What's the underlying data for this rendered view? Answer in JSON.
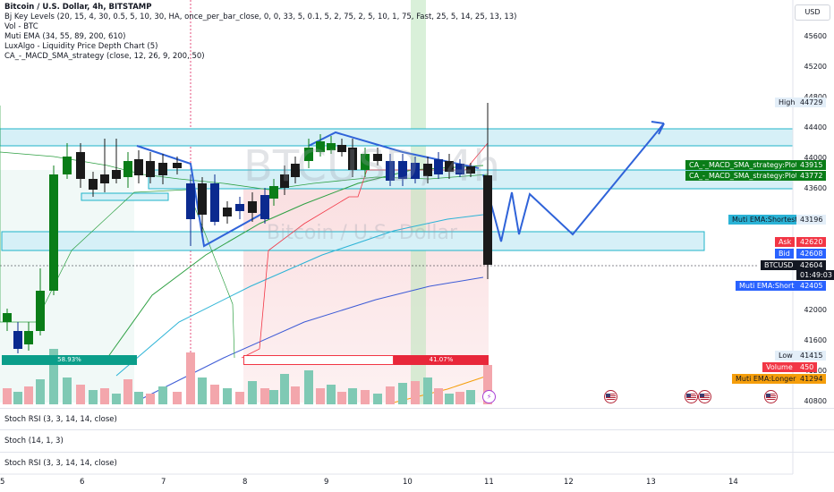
{
  "legend": {
    "title": "Bitcoin / U.S. Dollar, 4h, BITSTAMP",
    "indicators": [
      "Bj Key Levels (20, 15, 4, 30, 0.5, 5, 10, 30, HA, once_per_bar_close, 0, 0, 33, 5, 0.1, 5, 2, 75, 2, 5, 10, 1, 75, Fast, 25, 5, 14, 25, 13, 13)",
      "Vol - BTC",
      "Muti EMA (34, 55, 89, 200, 610)",
      "LuxAlgo - Liquidity Price Depth Chart (5)",
      "CA_-_MACD_SMA_strategy (close, 12, 26, 9, 200, 50)"
    ]
  },
  "watermark": {
    "symbol": "BTCUSD, 4h",
    "name": "Bitcoin / U.S. Dollar"
  },
  "currency": "USD",
  "price_axis": {
    "ticks": [
      "45600",
      "45200",
      "44800",
      "44400",
      "44000",
      "43600",
      "42000",
      "41600",
      "41200",
      "40800"
    ]
  },
  "time_axis": {
    "ticks": [
      "5",
      "6",
      "7",
      "8",
      "9",
      "10",
      "11",
      "12",
      "13",
      "14"
    ]
  },
  "tags": {
    "high_label": "High",
    "high_value": "44729",
    "strategy_plot_1_label": "CA_-_MACD_SMA_strategy:Plot",
    "strategy_plot_1_value": "43915",
    "strategy_plot_2_label": "CA_-_MACD_SMA_strategy:Plot",
    "strategy_plot_2_value": "43772",
    "ema_shortest_label": "Muti EMA:Shortest",
    "ema_shortest_value": "43196",
    "ask_label": "Ask",
    "ask_value": "42620",
    "bid_label": "Bid",
    "bid_value": "42608",
    "symbol_label": "BTCUSD",
    "last_price": "42604",
    "countdown": "01:49:03",
    "ema_short_label": "Muti EMA:Short",
    "ema_short_value": "42405",
    "low_label": "Low",
    "low_value": "41415",
    "volume_label": "Volume",
    "volume_value": "450",
    "ema_longer_label": "Muti EMA:Longer",
    "ema_longer_value": "41294"
  },
  "depth_bar": {
    "left_pct": "58.93%",
    "right_pct": "41.07%"
  },
  "panes": [
    "Stoch RSI (3, 3, 14, 14, close)",
    "Stoch (14, 1, 3)",
    "Stoch RSI (3, 3, 14, 14, close)"
  ],
  "colors": {
    "up": "#0a7d18",
    "down": "#0b2a8f",
    "neutral": "#1a1a1a",
    "zone_fill": "#d6f0f7",
    "zone_stroke": "#1fb3c9",
    "projection": "#2f63d9",
    "ema_short": "#3d5bd6",
    "ema_mid": "#2ea043",
    "ema_shortest": "#2bb3d6",
    "ema_longer": "#f59e0b",
    "ask": "#f23645",
    "bid": "#2962ff"
  },
  "icons": [
    "us-flag-icon",
    "lightning-icon"
  ]
}
